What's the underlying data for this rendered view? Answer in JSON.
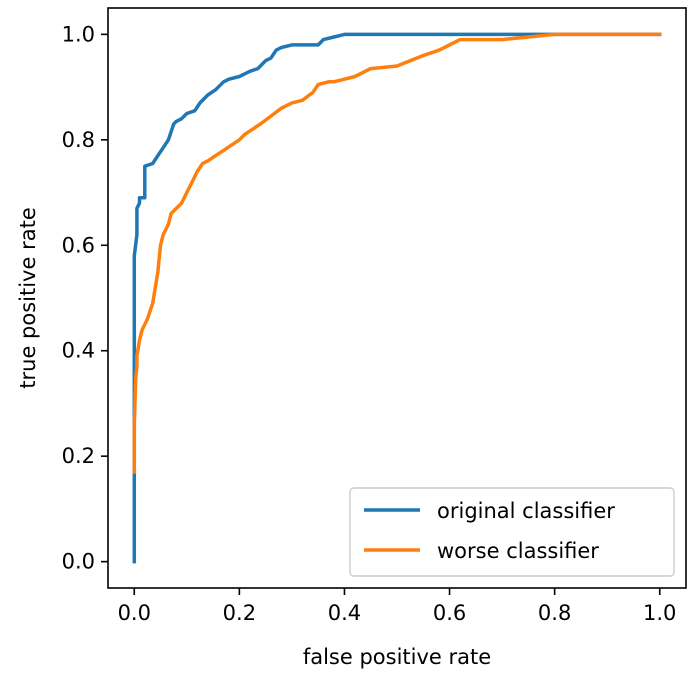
{
  "chart_data": {
    "type": "line",
    "title": "",
    "xlabel": "false positive rate",
    "ylabel": "true positive rate",
    "xlim": [
      -0.05,
      1.05
    ],
    "ylim": [
      -0.05,
      1.05
    ],
    "xticks": [
      0.0,
      0.2,
      0.4,
      0.6,
      0.8,
      1.0
    ],
    "yticks": [
      0.0,
      0.2,
      0.4,
      0.6,
      0.8,
      1.0
    ],
    "xtick_labels": [
      "0.0",
      "0.2",
      "0.4",
      "0.6",
      "0.8",
      "1.0"
    ],
    "ytick_labels": [
      "0.0",
      "0.2",
      "0.4",
      "0.6",
      "0.8",
      "1.0"
    ],
    "grid": false,
    "legend_position": "lower-right",
    "series": [
      {
        "name": "original classifier",
        "color": "#1f77b4",
        "x": [
          0.0,
          0.0,
          0.0,
          0.005,
          0.005,
          0.01,
          0.01,
          0.02,
          0.02,
          0.035,
          0.045,
          0.055,
          0.065,
          0.075,
          0.08,
          0.09,
          0.1,
          0.115,
          0.125,
          0.14,
          0.155,
          0.17,
          0.18,
          0.2,
          0.21,
          0.22,
          0.235,
          0.25,
          0.26,
          0.27,
          0.28,
          0.3,
          0.35,
          0.36,
          0.38,
          0.4,
          0.42,
          0.5,
          0.6,
          0.8,
          1.0
        ],
        "y": [
          0.0,
          0.35,
          0.58,
          0.62,
          0.67,
          0.68,
          0.69,
          0.69,
          0.75,
          0.755,
          0.77,
          0.785,
          0.8,
          0.83,
          0.835,
          0.84,
          0.85,
          0.855,
          0.87,
          0.885,
          0.895,
          0.91,
          0.915,
          0.92,
          0.925,
          0.93,
          0.935,
          0.95,
          0.955,
          0.97,
          0.975,
          0.98,
          0.98,
          0.99,
          0.995,
          1.0,
          1.0,
          1.0,
          1.0,
          1.0,
          1.0
        ]
      },
      {
        "name": "worse classifier",
        "color": "#ff7f0e",
        "x": [
          0.0,
          0.0,
          0.003,
          0.005,
          0.005,
          0.01,
          0.015,
          0.025,
          0.035,
          0.04,
          0.045,
          0.05,
          0.055,
          0.06,
          0.065,
          0.07,
          0.08,
          0.09,
          0.1,
          0.11,
          0.12,
          0.13,
          0.14,
          0.155,
          0.17,
          0.185,
          0.2,
          0.21,
          0.225,
          0.24,
          0.26,
          0.28,
          0.3,
          0.32,
          0.34,
          0.35,
          0.37,
          0.38,
          0.4,
          0.42,
          0.45,
          0.5,
          0.55,
          0.58,
          0.6,
          0.62,
          0.65,
          0.7,
          0.75,
          0.8,
          0.83,
          0.9,
          1.0
        ],
        "y": [
          0.17,
          0.26,
          0.35,
          0.37,
          0.39,
          0.42,
          0.44,
          0.46,
          0.49,
          0.52,
          0.55,
          0.6,
          0.62,
          0.63,
          0.64,
          0.66,
          0.67,
          0.68,
          0.7,
          0.72,
          0.74,
          0.755,
          0.76,
          0.77,
          0.78,
          0.79,
          0.8,
          0.81,
          0.82,
          0.83,
          0.845,
          0.86,
          0.87,
          0.875,
          0.89,
          0.905,
          0.91,
          0.91,
          0.915,
          0.92,
          0.935,
          0.94,
          0.96,
          0.97,
          0.98,
          0.99,
          0.99,
          0.99,
          0.995,
          1.0,
          1.0,
          1.0,
          1.0
        ]
      }
    ]
  }
}
